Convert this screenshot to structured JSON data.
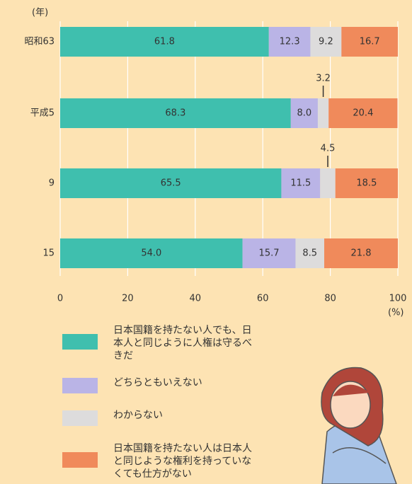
{
  "chart_data": {
    "type": "stacked-barh",
    "y_axis_label": "(年)",
    "x_axis_label": "(%)",
    "categories": [
      "昭和63",
      "平成5",
      "9",
      "15"
    ],
    "series": [
      {
        "name": "日本国籍を持たない人でも、日本人と同じように人権は守るべきだ",
        "color": "#3fbfae",
        "values": [
          61.8,
          68.3,
          65.5,
          54.0
        ]
      },
      {
        "name": "どちらともいえない",
        "color": "#bab4e6",
        "values": [
          12.3,
          8.0,
          11.5,
          15.7
        ]
      },
      {
        "name": "わからない",
        "color": "#dddcdc",
        "values": [
          9.2,
          3.2,
          4.5,
          8.5
        ]
      },
      {
        "name": "日本国籍を持たない人は日本人と同じような権利を持っていなくても仕方がない",
        "color": "#f08a5b",
        "values": [
          16.7,
          20.4,
          18.5,
          21.8
        ]
      }
    ],
    "value_labels": [
      [
        "61.8",
        "68.3",
        "65.5",
        "54.0"
      ],
      [
        "12.3",
        "8.0",
        "11.5",
        "15.7"
      ],
      [
        "9.2",
        "3.2",
        "4.5",
        "8.5"
      ],
      [
        "16.7",
        "20.4",
        "18.5",
        "21.8"
      ]
    ],
    "xlim": [
      0,
      100
    ],
    "xticks": [
      0,
      20,
      40,
      60,
      80,
      100
    ],
    "grid": true
  }
}
